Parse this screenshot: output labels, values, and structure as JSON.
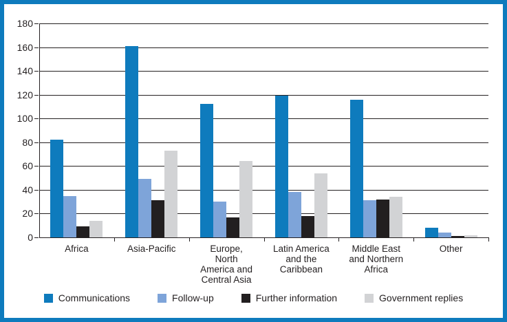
{
  "chart": {
    "frame_border_color": "#0e7bbd",
    "background_color": "#ffffff",
    "axis_color": "#231f20",
    "text_color": "#231f20"
  },
  "chart_data": {
    "type": "bar",
    "title": "",
    "xlabel": "",
    "ylabel": "",
    "categories": [
      "Africa",
      "Asia-Pacific",
      "Europe,\nNorth\nAmerica and\nCentral Asia",
      "Latin America\nand the\nCaribbean",
      "Middle East\nand Northern\nAfrica",
      "Other"
    ],
    "series": [
      {
        "name": "Communications",
        "color": "#0e7bbd",
        "values": [
          82,
          161,
          112,
          119,
          116,
          8
        ]
      },
      {
        "name": "Follow-up",
        "color": "#7ea4d9",
        "values": [
          35,
          49,
          30,
          38,
          31,
          4
        ]
      },
      {
        "name": "Further information",
        "color": "#221f20",
        "values": [
          9,
          31,
          17,
          18,
          32,
          1
        ]
      },
      {
        "name": "Government replies",
        "color": "#d2d3d5",
        "values": [
          14,
          73,
          64,
          54,
          34,
          2
        ]
      }
    ],
    "ylim": [
      0,
      180
    ],
    "ytick_step": 20,
    "yticks": [
      0,
      20,
      40,
      60,
      80,
      100,
      120,
      140,
      160,
      180
    ],
    "grid": true,
    "legend_position": "bottom"
  }
}
